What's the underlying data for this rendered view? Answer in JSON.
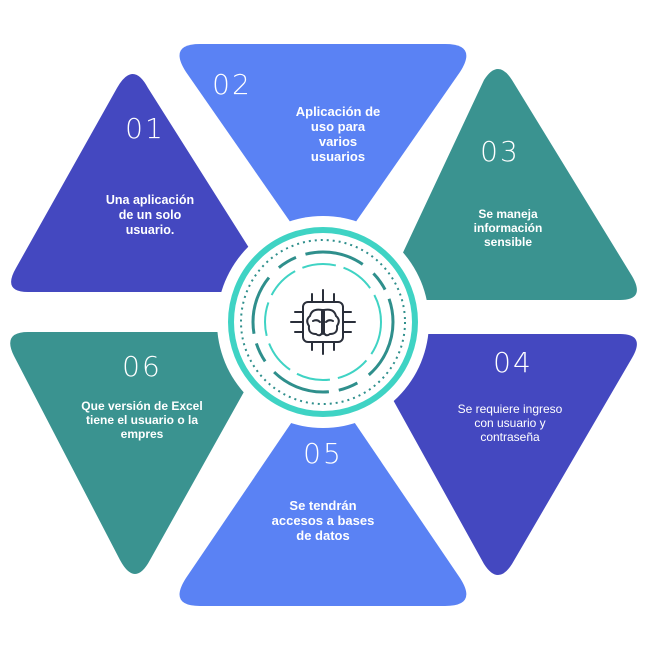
{
  "colors": {
    "indigo": "#4448C0",
    "blue": "#5A82F4",
    "teal": "#3A9390",
    "ring_teal": "#3FD3C4",
    "ring_dark": "#2F8F8C",
    "text": "#ffffff",
    "icon": "#2a2f3a"
  },
  "segments": [
    {
      "number": "01",
      "lines": [
        "Una aplicación",
        "de un solo",
        "usuario."
      ],
      "color": "indigo"
    },
    {
      "number": "02",
      "lines": [
        "Aplicación de",
        "uso para",
        "varios",
        "usuarios"
      ],
      "color": "blue"
    },
    {
      "number": "03",
      "lines": [
        "Se maneja",
        "información",
        "sensible"
      ],
      "color": "teal"
    },
    {
      "number": "04",
      "lines": [
        "Se requiere ingreso",
        "con usuario y",
        "contraseña"
      ],
      "color": "indigo"
    },
    {
      "number": "05",
      "lines": [
        "Se tendrán",
        "accesos a bases",
        "de datos"
      ],
      "color": "blue"
    },
    {
      "number": "06",
      "lines": [
        "Que versión de Excel",
        "tiene el usuario o la",
        "empres"
      ],
      "color": "teal"
    }
  ],
  "center": {
    "icon": "brain-chip-icon"
  }
}
